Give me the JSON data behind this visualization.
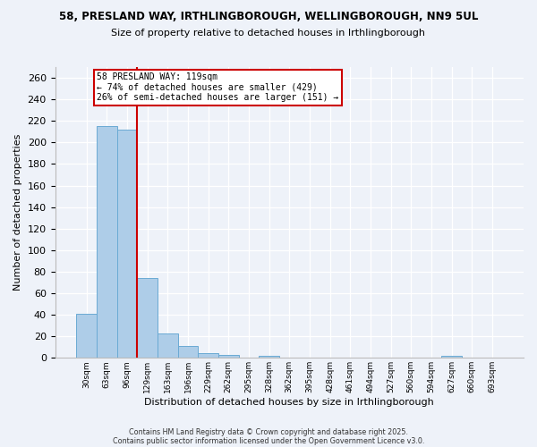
{
  "title1": "58, PRESLAND WAY, IRTHLINGBOROUGH, WELLINGBOROUGH, NN9 5UL",
  "title2": "Size of property relative to detached houses in Irthlingborough",
  "xlabel": "Distribution of detached houses by size in Irthlingborough",
  "ylabel": "Number of detached properties",
  "categories": [
    "30sqm",
    "63sqm",
    "96sqm",
    "129sqm",
    "163sqm",
    "196sqm",
    "229sqm",
    "262sqm",
    "295sqm",
    "328sqm",
    "362sqm",
    "395sqm",
    "428sqm",
    "461sqm",
    "494sqm",
    "527sqm",
    "560sqm",
    "594sqm",
    "627sqm",
    "660sqm",
    "693sqm"
  ],
  "values": [
    41,
    215,
    212,
    74,
    23,
    11,
    4,
    3,
    0,
    2,
    0,
    0,
    0,
    0,
    0,
    0,
    0,
    0,
    2,
    0,
    0
  ],
  "bar_color": "#aecde8",
  "bar_edge_color": "#6aaad4",
  "vline_color": "#cc0000",
  "annotation_text": "58 PRESLAND WAY: 119sqm\n← 74% of detached houses are smaller (429)\n26% of semi-detached houses are larger (151) →",
  "annotation_box_color": "#ffffff",
  "annotation_box_edge": "#cc0000",
  "ylim": [
    0,
    270
  ],
  "yticks": [
    0,
    20,
    40,
    60,
    80,
    100,
    120,
    140,
    160,
    180,
    200,
    220,
    240,
    260
  ],
  "footer1": "Contains HM Land Registry data © Crown copyright and database right 2025.",
  "footer2": "Contains public sector information licensed under the Open Government Licence v3.0.",
  "bg_color": "#eef2f9"
}
